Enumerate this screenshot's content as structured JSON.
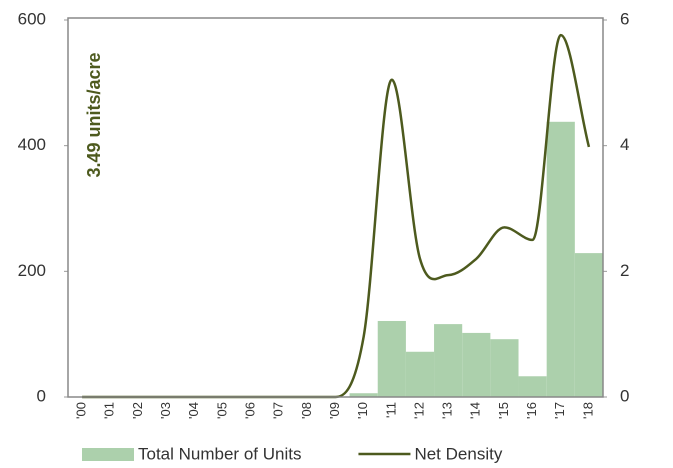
{
  "chart_data": {
    "type": "combo",
    "annotation": "3.49 units/acre",
    "categories": [
      "'00",
      "'01",
      "'02",
      "'03",
      "'04",
      "'05",
      "'06",
      "'07",
      "'08",
      "'09",
      "'10",
      "'11",
      "'12",
      "'13",
      "'14",
      "'15",
      "'16",
      "'17",
      "'18"
    ],
    "series": [
      {
        "name": "Total Number of Units",
        "type": "bar",
        "color": "#acd0ac",
        "values": [
          0,
          0,
          0,
          0,
          0,
          0,
          0,
          0,
          0,
          0,
          6,
          121,
          72,
          116,
          102,
          92,
          33,
          438,
          229
        ]
      },
      {
        "name": "Net Density",
        "type": "line",
        "axis": "y2",
        "color": "#4d5a1e",
        "values": [
          0,
          0,
          0,
          0,
          0,
          0,
          0,
          0,
          0,
          0,
          0.96,
          5.05,
          2.2,
          1.94,
          2.2,
          2.7,
          2.5,
          5.76,
          3.98
        ]
      }
    ],
    "ylim": [
      0,
      600
    ],
    "yticks": [
      0,
      200,
      400,
      600
    ],
    "y2lim": [
      0,
      6
    ],
    "y2ticks": [
      0,
      2,
      4,
      6
    ],
    "legend": "bottom"
  }
}
